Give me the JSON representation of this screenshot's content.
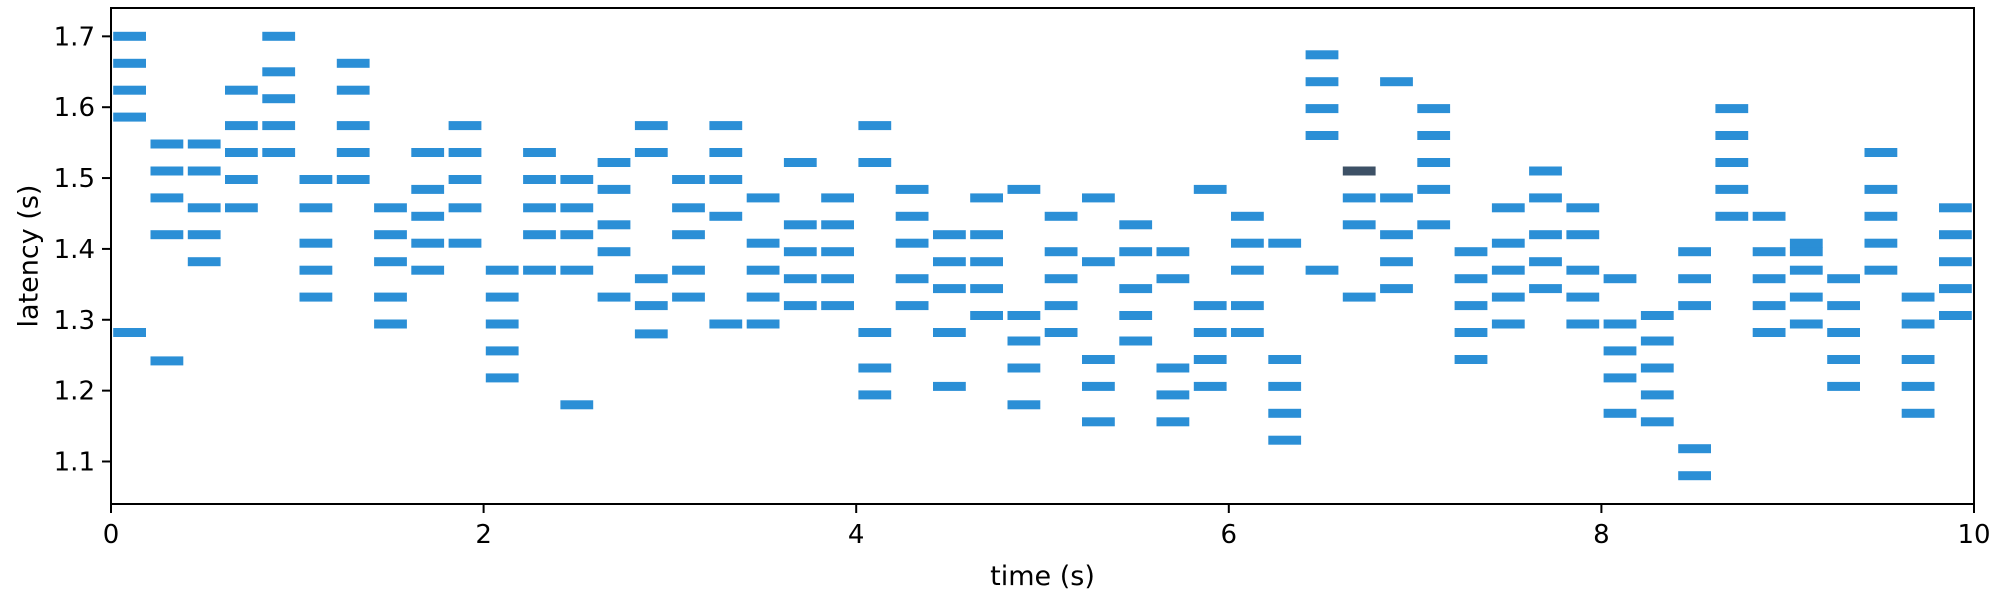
{
  "chart_data": {
    "type": "event-raster",
    "xlabel": "time (s)",
    "ylabel": "latency (s)",
    "xlim": [
      0,
      10
    ],
    "ylim": [
      1.04,
      1.74
    ],
    "xticks": [
      0,
      2,
      4,
      6,
      8,
      10
    ],
    "yticks": [
      1.1,
      1.2,
      1.3,
      1.4,
      1.5,
      1.6,
      1.7
    ],
    "xtick_labels": [
      "0",
      "2",
      "4",
      "6",
      "8",
      "10"
    ],
    "ytick_labels": [
      "1.1",
      "1.2",
      "1.3",
      "1.4",
      "1.5",
      "1.6",
      "1.7"
    ],
    "grid": false,
    "bin_width": 0.2,
    "bar_color": "#2b8fd6",
    "highlight_color": "#3d5166",
    "highlight": {
      "t": 6.6,
      "latency": 1.51
    },
    "columns": [
      {
        "t": 0.0,
        "latencies": [
          1.7,
          1.662,
          1.624,
          1.586,
          1.282
        ]
      },
      {
        "t": 0.2,
        "latencies": [
          1.548,
          1.51,
          1.472,
          1.42,
          1.242
        ]
      },
      {
        "t": 0.4,
        "latencies": [
          1.548,
          1.51,
          1.458,
          1.42,
          1.382
        ]
      },
      {
        "t": 0.6,
        "latencies": [
          1.624,
          1.574,
          1.536,
          1.498,
          1.458
        ]
      },
      {
        "t": 0.8,
        "latencies": [
          1.7,
          1.65,
          1.612,
          1.574,
          1.536
        ]
      },
      {
        "t": 1.0,
        "latencies": [
          1.498,
          1.458,
          1.408,
          1.37,
          1.332
        ]
      },
      {
        "t": 1.2,
        "latencies": [
          1.662,
          1.624,
          1.574,
          1.536,
          1.498
        ]
      },
      {
        "t": 1.4,
        "latencies": [
          1.458,
          1.42,
          1.382,
          1.332,
          1.294
        ]
      },
      {
        "t": 1.6,
        "latencies": [
          1.536,
          1.484,
          1.446,
          1.408,
          1.37
        ]
      },
      {
        "t": 1.8,
        "latencies": [
          1.574,
          1.536,
          1.498,
          1.458,
          1.408
        ]
      },
      {
        "t": 2.0,
        "latencies": [
          1.37,
          1.332,
          1.294,
          1.256,
          1.218
        ]
      },
      {
        "t": 2.2,
        "latencies": [
          1.536,
          1.498,
          1.458,
          1.42,
          1.37
        ]
      },
      {
        "t": 2.4,
        "latencies": [
          1.498,
          1.458,
          1.42,
          1.37,
          1.18
        ]
      },
      {
        "t": 2.6,
        "latencies": [
          1.522,
          1.484,
          1.434,
          1.396,
          1.332
        ]
      },
      {
        "t": 2.8,
        "latencies": [
          1.574,
          1.536,
          1.358,
          1.32,
          1.28
        ]
      },
      {
        "t": 3.0,
        "latencies": [
          1.498,
          1.458,
          1.42,
          1.37,
          1.332
        ]
      },
      {
        "t": 3.2,
        "latencies": [
          1.574,
          1.536,
          1.498,
          1.446,
          1.294
        ]
      },
      {
        "t": 3.4,
        "latencies": [
          1.472,
          1.408,
          1.37,
          1.332,
          1.294
        ]
      },
      {
        "t": 3.6,
        "latencies": [
          1.522,
          1.434,
          1.396,
          1.358,
          1.32
        ]
      },
      {
        "t": 3.8,
        "latencies": [
          1.472,
          1.434,
          1.396,
          1.358,
          1.32
        ]
      },
      {
        "t": 4.0,
        "latencies": [
          1.574,
          1.522,
          1.282,
          1.232,
          1.194
        ]
      },
      {
        "t": 4.2,
        "latencies": [
          1.484,
          1.446,
          1.408,
          1.358,
          1.32
        ]
      },
      {
        "t": 4.4,
        "latencies": [
          1.42,
          1.382,
          1.344,
          1.282,
          1.206
        ]
      },
      {
        "t": 4.6,
        "latencies": [
          1.472,
          1.42,
          1.382,
          1.344,
          1.306
        ]
      },
      {
        "t": 4.8,
        "latencies": [
          1.484,
          1.306,
          1.27,
          1.232,
          1.18
        ]
      },
      {
        "t": 5.0,
        "latencies": [
          1.446,
          1.396,
          1.358,
          1.32,
          1.282
        ]
      },
      {
        "t": 5.2,
        "latencies": [
          1.472,
          1.382,
          1.244,
          1.206,
          1.156
        ]
      },
      {
        "t": 5.4,
        "latencies": [
          1.434,
          1.396,
          1.344,
          1.306,
          1.27
        ]
      },
      {
        "t": 5.6,
        "latencies": [
          1.396,
          1.358,
          1.232,
          1.194,
          1.156
        ]
      },
      {
        "t": 5.8,
        "latencies": [
          1.484,
          1.32,
          1.282,
          1.244,
          1.206
        ]
      },
      {
        "t": 6.0,
        "latencies": [
          1.446,
          1.408,
          1.37,
          1.32,
          1.282
        ]
      },
      {
        "t": 6.2,
        "latencies": [
          1.408,
          1.244,
          1.206,
          1.168,
          1.13
        ]
      },
      {
        "t": 6.4,
        "latencies": [
          1.674,
          1.636,
          1.598,
          1.56,
          1.37
        ]
      },
      {
        "t": 6.6,
        "latencies": [
          1.51,
          1.472,
          1.434,
          1.332
        ]
      },
      {
        "t": 6.8,
        "latencies": [
          1.636,
          1.472,
          1.42,
          1.382,
          1.344
        ]
      },
      {
        "t": 7.0,
        "latencies": [
          1.598,
          1.56,
          1.522,
          1.484,
          1.434
        ]
      },
      {
        "t": 7.2,
        "latencies": [
          1.396,
          1.358,
          1.32,
          1.282,
          1.244
        ]
      },
      {
        "t": 7.4,
        "latencies": [
          1.458,
          1.408,
          1.37,
          1.332,
          1.294
        ]
      },
      {
        "t": 7.6,
        "latencies": [
          1.51,
          1.472,
          1.42,
          1.382,
          1.344
        ]
      },
      {
        "t": 7.8,
        "latencies": [
          1.458,
          1.42,
          1.37,
          1.332,
          1.294
        ]
      },
      {
        "t": 8.0,
        "latencies": [
          1.358,
          1.294,
          1.256,
          1.218,
          1.168
        ]
      },
      {
        "t": 8.2,
        "latencies": [
          1.306,
          1.27,
          1.232,
          1.194,
          1.156
        ]
      },
      {
        "t": 8.4,
        "latencies": [
          1.396,
          1.358,
          1.32,
          1.118,
          1.08
        ]
      },
      {
        "t": 8.6,
        "latencies": [
          1.598,
          1.56,
          1.522,
          1.484,
          1.446
        ]
      },
      {
        "t": 8.8,
        "latencies": [
          1.446,
          1.396,
          1.358,
          1.32,
          1.282
        ]
      },
      {
        "t": 9.0,
        "latencies": [
          1.408,
          1.396,
          1.37,
          1.332,
          1.294
        ]
      },
      {
        "t": 9.2,
        "latencies": [
          1.358,
          1.32,
          1.282,
          1.244,
          1.206
        ]
      },
      {
        "t": 9.4,
        "latencies": [
          1.536,
          1.484,
          1.446,
          1.408,
          1.37
        ]
      },
      {
        "t": 9.6,
        "latencies": [
          1.332,
          1.294,
          1.244,
          1.206,
          1.168
        ]
      },
      {
        "t": 9.8,
        "latencies": [
          1.458,
          1.42,
          1.382,
          1.344,
          1.306
        ]
      }
    ]
  }
}
